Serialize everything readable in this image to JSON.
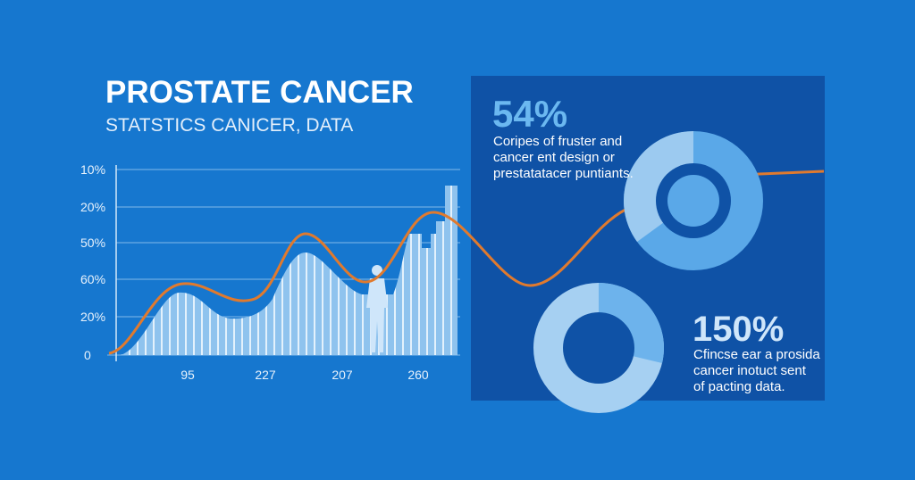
{
  "title": "PROSTATE CANCER",
  "subtitle": "STATSTICS CANICER, DATA",
  "y_axis_labels": [
    "10%",
    "20%",
    "50%",
    "60%",
    "20%",
    "0"
  ],
  "x_axis_labels": [
    "95",
    "227",
    "207",
    "260"
  ],
  "stats": [
    {
      "value": "54%",
      "lines": [
        "Coripes of fruster and",
        "cancer ent design or",
        "prestatatacer puntiants."
      ]
    },
    {
      "value": "150%",
      "lines": [
        "Cfincse ear a prosida",
        "cancer inotuct sent",
        "of pacting data."
      ]
    }
  ]
}
